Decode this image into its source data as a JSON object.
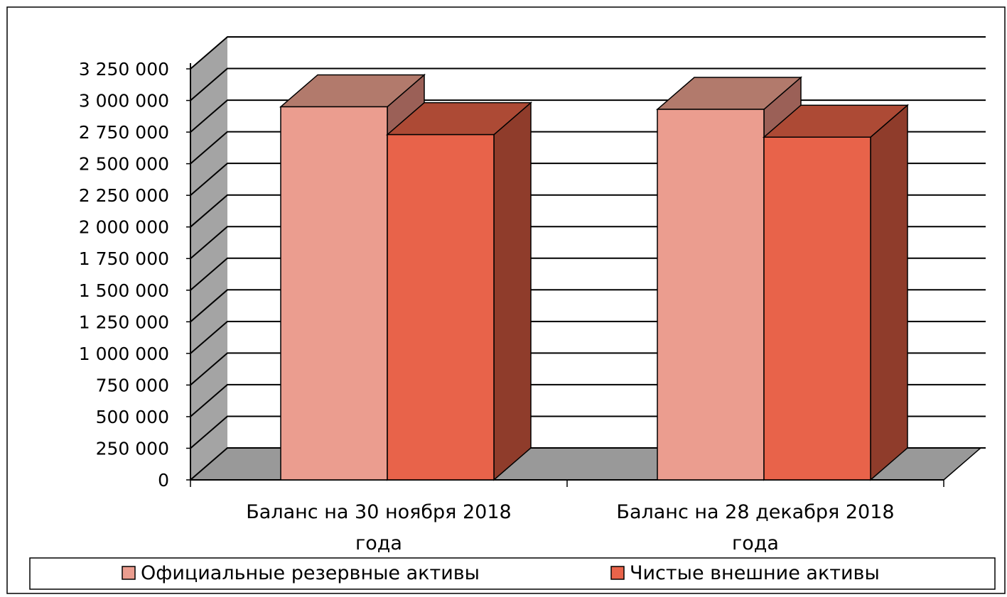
{
  "chart_data": {
    "type": "bar",
    "title": "",
    "xlabel": "",
    "ylabel": "",
    "categories": [
      [
        "Баланс на 30 ноября 2018",
        "года"
      ],
      [
        "Баланс на 28 декабря 2018",
        "года"
      ]
    ],
    "series": [
      {
        "name": "Официальные резервные активы",
        "values": [
          2950000,
          2930000
        ]
      },
      {
        "name": "Чистые внешние активы",
        "values": [
          2730000,
          2710000
        ]
      }
    ],
    "ylim": [
      0,
      3250000
    ],
    "yticks": [
      {
        "value": 0,
        "label": "0"
      },
      {
        "value": 250000,
        "label": "250 000"
      },
      {
        "value": 500000,
        "label": "500 000"
      },
      {
        "value": 750000,
        "label": "750 000"
      },
      {
        "value": 1000000,
        "label": "1 000 000"
      },
      {
        "value": 1250000,
        "label": "1 250 000"
      },
      {
        "value": 1500000,
        "label": "1 500 000"
      },
      {
        "value": 1750000,
        "label": "1 750 000"
      },
      {
        "value": 2000000,
        "label": "2 000 000"
      },
      {
        "value": 2250000,
        "label": "2 250 000"
      },
      {
        "value": 2500000,
        "label": "2 500 000"
      },
      {
        "value": 2750000,
        "label": "2 750 000"
      },
      {
        "value": 3000000,
        "label": "3 000 000"
      },
      {
        "value": 3250000,
        "label": "3 250 000"
      }
    ],
    "grid": true,
    "legend": "bottom",
    "colors": {
      "series_front": [
        "#eb9d8f",
        "#e8634a"
      ],
      "series_top": [
        "#b27a6c",
        "#ad4a35"
      ],
      "series_side": [
        "#9b6057",
        "#8f3c2b"
      ],
      "wall": "#a4a4a4",
      "floor": "#999999",
      "grid": "#000000"
    }
  }
}
